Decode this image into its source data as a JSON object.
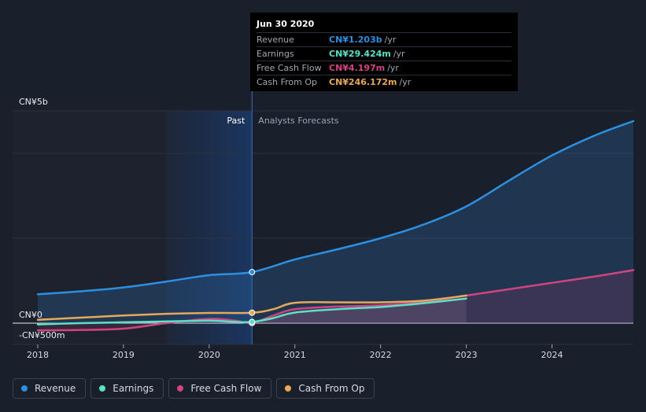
{
  "chart_data": {
    "type": "line",
    "currency_unit": "CN¥",
    "y_labels": {
      "top": "CN¥5b",
      "zero": "CN¥0",
      "bottom": "-CN¥500m"
    },
    "ylim": [
      -500,
      5000
    ],
    "xlim": [
      2018.0,
      2024.95
    ],
    "x_ticks": [
      "2018",
      "2019",
      "2020",
      "2021",
      "2022",
      "2023",
      "2024"
    ],
    "x_tick_values": [
      2018,
      2019,
      2020,
      2021,
      2022,
      2023,
      2024
    ],
    "past_label": "Past",
    "forecast_label": "Analysts Forecasts",
    "divider_x": 2020.5,
    "shade_start_x": 2019.5,
    "series": [
      {
        "name": "Revenue",
        "color": "#2d8fe0",
        "x": [
          2018.0,
          2018.5,
          2019.0,
          2019.5,
          2020.0,
          2020.5,
          2021.0,
          2021.5,
          2022.0,
          2022.5,
          2023.0,
          2023.5,
          2024.0,
          2024.5,
          2024.95
        ],
        "values": [
          680,
          750,
          840,
          980,
          1130,
          1203,
          1500,
          1740,
          2000,
          2320,
          2750,
          3360,
          3950,
          4420,
          4760
        ],
        "marker_index": 5
      },
      {
        "name": "Earnings",
        "color": "#5de0c8",
        "x": [
          2018.0,
          2018.5,
          2019.0,
          2019.5,
          2020.0,
          2020.3,
          2020.5,
          2020.75,
          2021.0,
          2021.5,
          2022.0,
          2022.5,
          2023.0
        ],
        "values": [
          -30,
          0,
          20,
          40,
          60,
          30,
          29.424,
          120,
          250,
          330,
          380,
          470,
          580
        ],
        "marker_index": 6
      },
      {
        "name": "Free Cash Flow",
        "color": "#d0457f",
        "x": [
          2018.0,
          2018.5,
          2019.0,
          2019.5,
          2020.0,
          2020.3,
          2020.5,
          2020.75,
          2021.0,
          2021.5,
          2022.0,
          2022.5,
          2023.0,
          2023.5,
          2024.0,
          2024.5,
          2024.95
        ],
        "values": [
          -170,
          -160,
          -130,
          0,
          100,
          60,
          4.197,
          180,
          330,
          390,
          420,
          500,
          650,
          800,
          950,
          1100,
          1250
        ],
        "marker_index": 6
      },
      {
        "name": "Cash From Op",
        "color": "#e8a85a",
        "x": [
          2018.0,
          2018.5,
          2019.0,
          2019.5,
          2020.0,
          2020.5,
          2020.75,
          2021.0,
          2021.5,
          2022.0,
          2022.5,
          2023.0
        ],
        "values": [
          80,
          130,
          180,
          220,
          240,
          246.172,
          330,
          480,
          490,
          490,
          530,
          650
        ],
        "marker_index": 5
      }
    ]
  },
  "tooltip": {
    "date": "Jun 30 2020",
    "rows": [
      {
        "label": "Revenue",
        "value": "CN¥1.203b",
        "unit": "/yr",
        "color": "#2d8fe0"
      },
      {
        "label": "Earnings",
        "value": "CN¥29.424m",
        "unit": "/yr",
        "color": "#5de0c8"
      },
      {
        "label": "Free Cash Flow",
        "value": "CN¥4.197m",
        "unit": "/yr",
        "color": "#d0457f"
      },
      {
        "label": "Cash From Op",
        "value": "CN¥246.172m",
        "unit": "/yr",
        "color": "#e8a85a"
      }
    ]
  },
  "legend": [
    {
      "label": "Revenue",
      "color": "#2d8fe0"
    },
    {
      "label": "Earnings",
      "color": "#5de0c8"
    },
    {
      "label": "Free Cash Flow",
      "color": "#d0457f"
    },
    {
      "label": "Cash From Op",
      "color": "#e8a85a"
    }
  ]
}
